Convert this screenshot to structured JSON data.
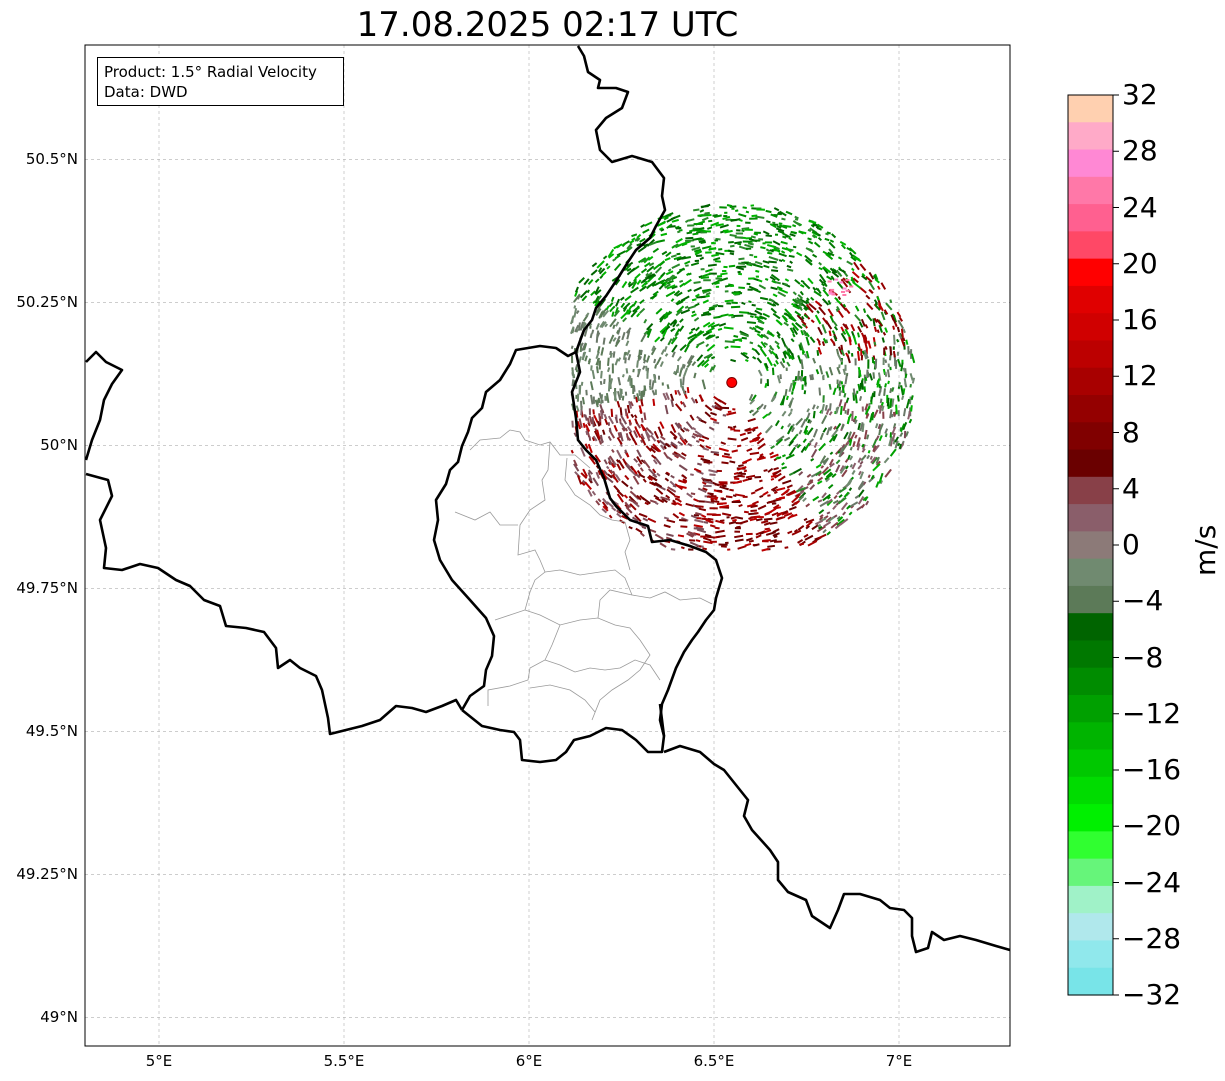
{
  "title": "17.08.2025 02:17 UTC",
  "info": {
    "product": "Product: 1.5° Radial Velocity",
    "source": "Data: DWD"
  },
  "map": {
    "lon_range": [
      4.8,
      7.3
    ],
    "lat_range": [
      48.95,
      50.7
    ],
    "lat_ticks": [
      {
        "value": 49.0,
        "label": "49°N"
      },
      {
        "value": 49.25,
        "label": "49.25°N"
      },
      {
        "value": 49.5,
        "label": "49.5°N"
      },
      {
        "value": 49.75,
        "label": "49.75°N"
      },
      {
        "value": 50.0,
        "label": "50°N"
      },
      {
        "value": 50.25,
        "label": "50.25°N"
      },
      {
        "value": 50.5,
        "label": "50.5°N"
      }
    ],
    "lon_ticks": [
      {
        "value": 5.0,
        "label": "5°E"
      },
      {
        "value": 5.5,
        "label": "5.5°E"
      },
      {
        "value": 6.0,
        "label": "6°E"
      },
      {
        "value": 6.5,
        "label": "6.5°E"
      },
      {
        "value": 7.0,
        "label": "7°E"
      }
    ],
    "gridlines": true,
    "radar_site": {
      "lon": 6.548,
      "lat": 50.11,
      "color": "#ff0000"
    },
    "borders_color": "#000000",
    "admin_color": "#9a9a9a"
  },
  "colorbar": {
    "unit": "m/s",
    "min": -32,
    "max": 32,
    "tick_labels": [
      "32",
      "28",
      "24",
      "20",
      "16",
      "12",
      "8",
      "4",
      "0",
      "−4",
      "−8",
      "−12",
      "−16",
      "−20",
      "−24",
      "−28",
      "−32"
    ],
    "colors_top_to_bottom": [
      "#ffd0b0",
      "#ffaac8",
      "#ff88d4",
      "#ff78a8",
      "#ff6090",
      "#ff4866",
      "#ff0000",
      "#e00000",
      "#d00000",
      "#bc0000",
      "#a80000",
      "#940000",
      "#800000",
      "#6a0000",
      "#884048",
      "#8a5e6a",
      "#8c7a78",
      "#708a70",
      "#5c7a58",
      "#006400",
      "#007800",
      "#008c00",
      "#00a000",
      "#00b400",
      "#00c800",
      "#00dc00",
      "#00f000",
      "#30ff30",
      "#66f57a",
      "#a0f2c8",
      "#b0e8ec",
      "#90e8ec",
      "#78e4e8"
    ]
  }
}
